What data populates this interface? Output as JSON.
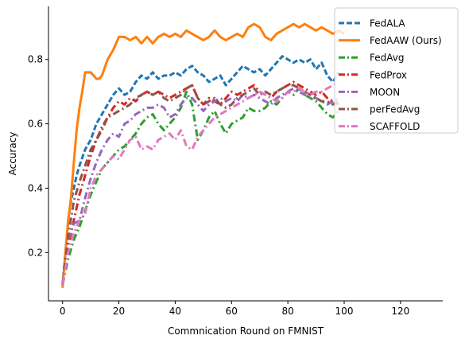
{
  "chart_data": {
    "type": "line",
    "title": "",
    "xlabel": "Commnication Round on FMNIST",
    "ylabel": "Accuracy",
    "xlim": [
      -5,
      135
    ],
    "ylim": [
      0.05,
      0.965
    ],
    "xticks": [
      0,
      20,
      40,
      60,
      80,
      100,
      120
    ],
    "yticks": [
      0.2,
      0.4,
      0.6,
      0.8
    ],
    "xtick_labels": [
      "0",
      "20",
      "40",
      "60",
      "80",
      "100",
      "120"
    ],
    "ytick_labels": [
      "0.2",
      "0.4",
      "0.6",
      "0.8"
    ],
    "grid": false,
    "legend_position": "top-right",
    "series": [
      {
        "name": "FedALA",
        "color": "#1f77b4",
        "dash": "dashed",
        "x": [
          0,
          1,
          2,
          3,
          4,
          5,
          6,
          8,
          10,
          12,
          14,
          16,
          18,
          20,
          22,
          24,
          26,
          28,
          30,
          32,
          34,
          36,
          38,
          40,
          42,
          44,
          46,
          48,
          50,
          52,
          54,
          56,
          58,
          60,
          62,
          64,
          66,
          68,
          70,
          72,
          74,
          76,
          78,
          80,
          82,
          84,
          86,
          88,
          90,
          92,
          94,
          96,
          98
        ],
        "y": [
          0.1,
          0.2,
          0.3,
          0.36,
          0.4,
          0.44,
          0.47,
          0.52,
          0.55,
          0.6,
          0.63,
          0.66,
          0.69,
          0.71,
          0.69,
          0.7,
          0.73,
          0.75,
          0.74,
          0.76,
          0.74,
          0.75,
          0.75,
          0.76,
          0.75,
          0.77,
          0.78,
          0.76,
          0.75,
          0.73,
          0.74,
          0.75,
          0.72,
          0.74,
          0.76,
          0.78,
          0.77,
          0.76,
          0.77,
          0.75,
          0.77,
          0.79,
          0.81,
          0.8,
          0.79,
          0.8,
          0.79,
          0.8,
          0.77,
          0.79,
          0.75,
          0.73,
          0.76
        ]
      },
      {
        "name": "FedAAW (Ours)",
        "color": "#ff7f0e",
        "dash": "solid",
        "x": [
          0,
          1,
          2,
          3,
          4,
          5,
          6,
          7,
          8,
          9,
          10,
          11,
          12,
          13,
          14,
          16,
          18,
          20,
          22,
          24,
          26,
          28,
          30,
          32,
          34,
          36,
          38,
          40,
          42,
          44,
          46,
          48,
          50,
          52,
          54,
          56,
          58,
          60,
          62,
          64,
          66,
          68,
          70,
          72,
          74,
          76,
          78,
          80,
          82,
          84,
          86,
          88,
          90,
          92,
          94,
          96,
          98,
          100
        ],
        "y": [
          0.09,
          0.2,
          0.3,
          0.37,
          0.48,
          0.58,
          0.65,
          0.7,
          0.76,
          0.76,
          0.76,
          0.75,
          0.74,
          0.74,
          0.75,
          0.8,
          0.83,
          0.87,
          0.87,
          0.86,
          0.87,
          0.85,
          0.87,
          0.85,
          0.87,
          0.88,
          0.87,
          0.88,
          0.87,
          0.89,
          0.88,
          0.87,
          0.86,
          0.87,
          0.89,
          0.87,
          0.86,
          0.87,
          0.88,
          0.87,
          0.9,
          0.91,
          0.9,
          0.87,
          0.86,
          0.88,
          0.89,
          0.9,
          0.91,
          0.9,
          0.91,
          0.9,
          0.89,
          0.9,
          0.89,
          0.88,
          0.89,
          0.88
        ]
      },
      {
        "name": "FedAvg",
        "color": "#2ca02c",
        "dash": "dashdot",
        "x": [
          0,
          2,
          4,
          6,
          8,
          10,
          12,
          14,
          16,
          18,
          20,
          22,
          24,
          26,
          28,
          30,
          32,
          34,
          36,
          38,
          40,
          42,
          44,
          46,
          48,
          50,
          52,
          54,
          56,
          58,
          60,
          62,
          64,
          66,
          68,
          70,
          72,
          74,
          76,
          78,
          80,
          82,
          84,
          86,
          88,
          90,
          92,
          94,
          96,
          98
        ],
        "y": [
          0.1,
          0.18,
          0.24,
          0.28,
          0.33,
          0.38,
          0.42,
          0.46,
          0.48,
          0.5,
          0.52,
          0.53,
          0.55,
          0.57,
          0.6,
          0.62,
          0.63,
          0.6,
          0.58,
          0.6,
          0.62,
          0.65,
          0.7,
          0.66,
          0.55,
          0.58,
          0.62,
          0.64,
          0.6,
          0.57,
          0.6,
          0.61,
          0.62,
          0.65,
          0.64,
          0.64,
          0.65,
          0.67,
          0.66,
          0.68,
          0.7,
          0.69,
          0.71,
          0.69,
          0.68,
          0.67,
          0.65,
          0.63,
          0.62,
          0.64
        ]
      },
      {
        "name": "FedProx",
        "color": "#d62728",
        "dash": "dashdot",
        "x": [
          0,
          2,
          4,
          6,
          8,
          10,
          12,
          14,
          16,
          18,
          20,
          22,
          24,
          26,
          28,
          30,
          32,
          34,
          36,
          38,
          40,
          42,
          44,
          46,
          48,
          50,
          52,
          54,
          56,
          58,
          60,
          62,
          64,
          66,
          68,
          70,
          72,
          74,
          76,
          78,
          80,
          82,
          84,
          86,
          88,
          90,
          92,
          94,
          96,
          98
        ],
        "y": [
          0.1,
          0.22,
          0.3,
          0.38,
          0.44,
          0.5,
          0.55,
          0.59,
          0.62,
          0.65,
          0.67,
          0.66,
          0.68,
          0.67,
          0.69,
          0.7,
          0.69,
          0.7,
          0.69,
          0.68,
          0.69,
          0.7,
          0.71,
          0.72,
          0.68,
          0.66,
          0.68,
          0.67,
          0.66,
          0.68,
          0.7,
          0.69,
          0.7,
          0.71,
          0.72,
          0.7,
          0.69,
          0.68,
          0.7,
          0.71,
          0.72,
          0.73,
          0.72,
          0.71,
          0.7,
          0.69,
          0.7,
          0.68,
          0.67,
          0.66
        ]
      },
      {
        "name": "MOON",
        "color": "#9467bd",
        "dash": "dashdot",
        "x": [
          0,
          2,
          4,
          6,
          8,
          10,
          12,
          14,
          16,
          18,
          20,
          22,
          24,
          26,
          28,
          30,
          32,
          34,
          36,
          38,
          40,
          42,
          44,
          46,
          48,
          50,
          52,
          54,
          56,
          58,
          60,
          62,
          64,
          66,
          68,
          70,
          72,
          74,
          76,
          78,
          80,
          82,
          84,
          86,
          88,
          90,
          92,
          94,
          96,
          98
        ],
        "y": [
          0.1,
          0.24,
          0.29,
          0.3,
          0.37,
          0.43,
          0.48,
          0.52,
          0.55,
          0.57,
          0.56,
          0.6,
          0.61,
          0.63,
          0.64,
          0.65,
          0.65,
          0.66,
          0.65,
          0.62,
          0.63,
          0.66,
          0.68,
          0.68,
          0.66,
          0.64,
          0.66,
          0.67,
          0.68,
          0.67,
          0.68,
          0.67,
          0.69,
          0.68,
          0.69,
          0.68,
          0.67,
          0.66,
          0.68,
          0.69,
          0.7,
          0.71,
          0.7,
          0.69,
          0.68,
          0.68,
          0.67,
          0.66,
          0.67,
          0.68
        ]
      },
      {
        "name": "perFedAvg",
        "color": "#8c564b",
        "dash": "dashdot",
        "x": [
          0,
          2,
          4,
          6,
          8,
          10,
          12,
          14,
          16,
          18,
          20,
          22,
          24,
          26,
          28,
          30,
          32,
          34,
          36,
          38,
          40,
          42,
          44,
          46,
          48,
          50,
          52,
          54,
          56,
          58,
          60,
          62,
          64,
          66,
          68,
          70,
          72,
          74,
          76,
          78,
          80,
          82,
          84,
          86,
          88,
          90,
          92,
          94,
          96,
          98
        ],
        "y": [
          0.1,
          0.25,
          0.36,
          0.42,
          0.47,
          0.52,
          0.55,
          0.58,
          0.62,
          0.63,
          0.64,
          0.65,
          0.66,
          0.68,
          0.69,
          0.7,
          0.69,
          0.7,
          0.68,
          0.67,
          0.68,
          0.69,
          0.71,
          0.72,
          0.68,
          0.66,
          0.67,
          0.68,
          0.66,
          0.65,
          0.66,
          0.68,
          0.69,
          0.7,
          0.71,
          0.69,
          0.7,
          0.69,
          0.7,
          0.71,
          0.72,
          0.72,
          0.71,
          0.7,
          0.69,
          0.68,
          0.67,
          0.67,
          0.66,
          0.67
        ]
      },
      {
        "name": "SCAFFOLD",
        "color": "#e377c2",
        "dash": "dashdot",
        "x": [
          0,
          2,
          4,
          6,
          8,
          10,
          12,
          14,
          16,
          18,
          20,
          22,
          24,
          26,
          28,
          30,
          32,
          34,
          36,
          38,
          40,
          42,
          44,
          46,
          48,
          50,
          52,
          54,
          56,
          58,
          60,
          62,
          64,
          66,
          68,
          70,
          72,
          74,
          76,
          78,
          80,
          82,
          84,
          86,
          88,
          90,
          92,
          94,
          96,
          98
        ],
        "y": [
          0.1,
          0.2,
          0.26,
          0.3,
          0.32,
          0.4,
          0.44,
          0.46,
          0.48,
          0.5,
          0.49,
          0.52,
          0.55,
          0.56,
          0.52,
          0.53,
          0.52,
          0.55,
          0.56,
          0.57,
          0.55,
          0.58,
          0.53,
          0.52,
          0.56,
          0.58,
          0.6,
          0.62,
          0.63,
          0.64,
          0.65,
          0.66,
          0.67,
          0.68,
          0.69,
          0.7,
          0.69,
          0.68,
          0.67,
          0.68,
          0.7,
          0.7,
          0.71,
          0.7,
          0.69,
          0.7,
          0.7,
          0.71,
          0.72,
          0.73
        ]
      }
    ]
  }
}
